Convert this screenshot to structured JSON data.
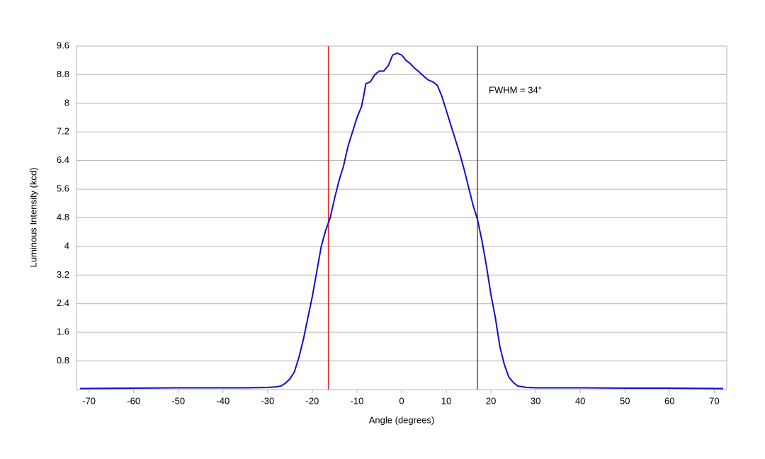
{
  "chart_data": {
    "type": "line",
    "x_label": "Angle (degrees)",
    "y_label": "Luminous Intensity (kcd)",
    "annotation": "FWHM = 34°",
    "x": [
      -72,
      -60,
      -50,
      -40,
      -35,
      -30,
      -28,
      -27,
      -26,
      -25,
      -24,
      -23,
      -22,
      -21,
      -20,
      -19,
      -18,
      -17,
      -16,
      -15,
      -14,
      -13,
      -12,
      -11,
      -10,
      -9,
      -8.5,
      -8,
      -7,
      -6,
      -5,
      -4,
      -3,
      -2,
      -1,
      0,
      1,
      2,
      3,
      4,
      5,
      6,
      7,
      8,
      9,
      10,
      11,
      12,
      13,
      14,
      15,
      16,
      17,
      18,
      19,
      20,
      21,
      22,
      23,
      24,
      25,
      26,
      28,
      30,
      40,
      50,
      60,
      72
    ],
    "series": [
      {
        "name": "Luminous Intensity",
        "color": "#1010c8",
        "values": [
          0.03,
          0.04,
          0.05,
          0.05,
          0.05,
          0.06,
          0.08,
          0.1,
          0.18,
          0.3,
          0.5,
          0.9,
          1.4,
          2.0,
          2.6,
          3.3,
          4.0,
          4.45,
          4.8,
          5.35,
          5.85,
          6.25,
          6.8,
          7.2,
          7.6,
          7.9,
          8.2,
          8.55,
          8.6,
          8.8,
          8.9,
          8.9,
          9.05,
          9.35,
          9.4,
          9.35,
          9.2,
          9.1,
          8.97,
          8.87,
          8.75,
          8.65,
          8.6,
          8.5,
          8.2,
          7.8,
          7.4,
          7.0,
          6.6,
          6.15,
          5.65,
          5.15,
          4.75,
          4.15,
          3.45,
          2.65,
          2.0,
          1.2,
          0.7,
          0.35,
          0.2,
          0.1,
          0.06,
          0.05,
          0.05,
          0.04,
          0.04,
          0.03
        ]
      }
    ],
    "reference_lines": [
      -16.4,
      17.0
    ],
    "reference_color": "#e02020",
    "xlim": [
      -72.8,
      72.8
    ],
    "xticks": [
      -70,
      -60,
      -50,
      -40,
      -30,
      -20,
      -10,
      0,
      10,
      20,
      30,
      40,
      50,
      60,
      70
    ],
    "ylim": [
      0,
      9.6
    ],
    "yticks": [
      0.8,
      1.6,
      2.4,
      3.2,
      4.0,
      4.8,
      5.6,
      6.4,
      7.2,
      8.0,
      8.8,
      9.6
    ],
    "grid": true
  }
}
